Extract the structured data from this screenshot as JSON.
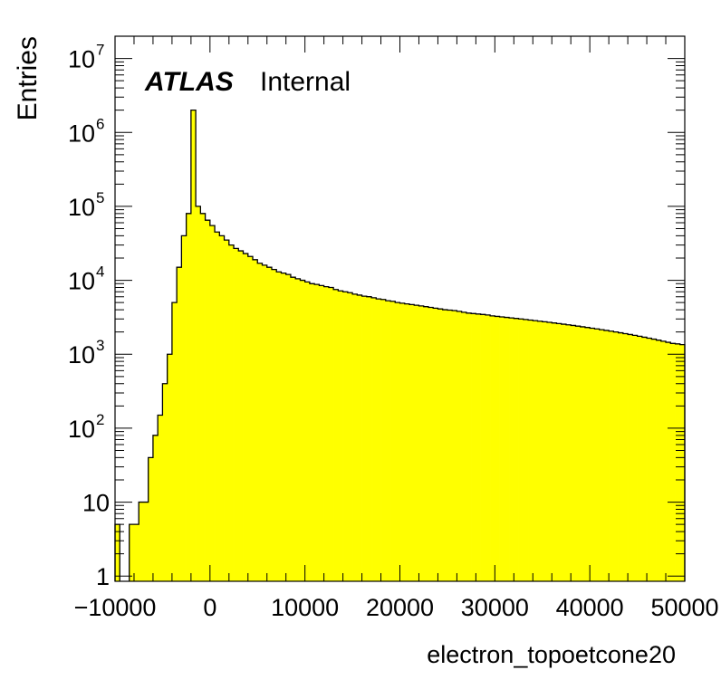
{
  "chart_data": {
    "type": "bar",
    "xlabel": "electron_topoetcone20",
    "ylabel": "Entries",
    "xlim": [
      -10000,
      50000
    ],
    "ylim": [
      0.85,
      20000000
    ],
    "y_scale": "log",
    "grid": false,
    "fill_color": "#ffff00",
    "outline_color": "#000000",
    "x_ticks": [
      {
        "value": -10000,
        "label": "−10000"
      },
      {
        "value": 0,
        "label": "0"
      },
      {
        "value": 10000,
        "label": "10000"
      },
      {
        "value": 20000,
        "label": "20000"
      },
      {
        "value": 30000,
        "label": "30000"
      },
      {
        "value": 40000,
        "label": "40000"
      },
      {
        "value": 50000,
        "label": "50000"
      }
    ],
    "y_ticks": [
      {
        "value": 1,
        "base": "1",
        "exp": ""
      },
      {
        "value": 10,
        "base": "10",
        "exp": ""
      },
      {
        "value": 100,
        "base": "10",
        "exp": "2"
      },
      {
        "value": 1000,
        "base": "10",
        "exp": "3"
      },
      {
        "value": 10000,
        "base": "10",
        "exp": "4"
      },
      {
        "value": 100000,
        "base": "10",
        "exp": "5"
      },
      {
        "value": 1000000,
        "base": "10",
        "exp": "6"
      },
      {
        "value": 10000000,
        "base": "10",
        "exp": "7"
      }
    ],
    "bin_width": 500,
    "bin_edges_start": -10000,
    "values": [
      5,
      0,
      0,
      5,
      5,
      10,
      10,
      40,
      80,
      150,
      400,
      1000,
      5000,
      15000,
      40000,
      80000,
      2000000,
      100000,
      80000,
      65000,
      55000,
      45000,
      40000,
      35000,
      30000,
      27000,
      25000,
      23000,
      21000,
      19000,
      17000,
      16000,
      15000,
      14000,
      13000,
      12500,
      12000,
      11000,
      10500,
      10000,
      9500,
      9000,
      8800,
      8500,
      8200,
      8000,
      7500,
      7200,
      7000,
      6800,
      6500,
      6300,
      6100,
      6000,
      5800,
      5600,
      5500,
      5300,
      5200,
      5000,
      4900,
      4800,
      4700,
      4600,
      4500,
      4400,
      4300,
      4200,
      4100,
      4000,
      3950,
      3900,
      3800,
      3700,
      3600,
      3550,
      3500,
      3450,
      3400,
      3300,
      3250,
      3200,
      3150,
      3100,
      3050,
      3000,
      2950,
      2900,
      2850,
      2800,
      2750,
      2700,
      2650,
      2600,
      2550,
      2500,
      2450,
      2400,
      2350,
      2300,
      2250,
      2200,
      2150,
      2100,
      2050,
      2000,
      1950,
      1900,
      1850,
      1800,
      1750,
      1700,
      1650,
      1600,
      1550,
      1500,
      1450,
      1400,
      1380,
      1350
    ]
  },
  "badge": {
    "atlas": "ATLAS",
    "status": "Internal"
  }
}
